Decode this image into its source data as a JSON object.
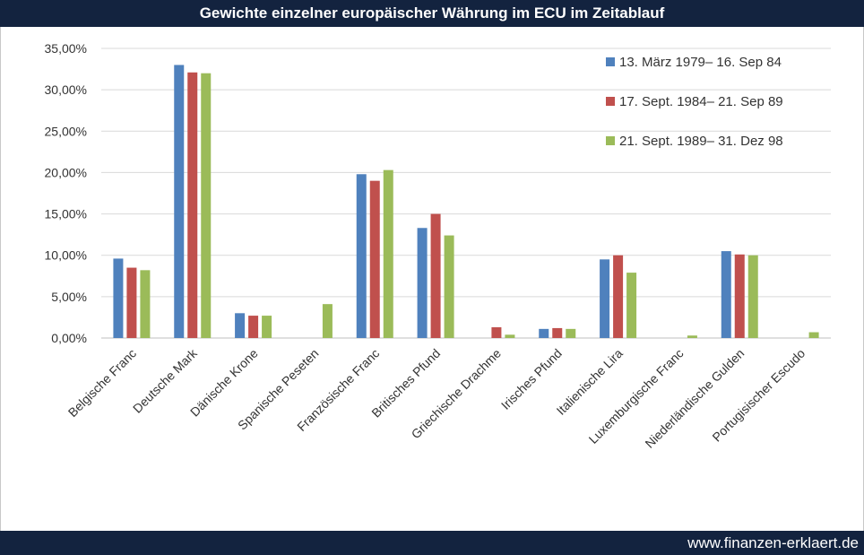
{
  "title": "Gewichte einzelner europäischer Währung im ECU im Zeitablauf",
  "footer": "www.finanzen-erklaert.de",
  "chart_data": {
    "type": "bar",
    "title": "Gewichte einzelner europäischer Währung im ECU im Zeitablauf",
    "xlabel": "",
    "ylabel": "",
    "ylim": [
      0,
      35
    ],
    "yticks": [
      "0,00%",
      "5,00%",
      "10,00%",
      "15,00%",
      "20,00%",
      "25,00%",
      "30,00%",
      "35,00%"
    ],
    "grid": true,
    "legend_position": "top-right",
    "categories": [
      "Belgische Franc",
      "Deutsche Mark",
      "Dänische Krone",
      "Spanische Peseten",
      "Französische Franc",
      "Britisches Pfund",
      "Griechische Drachme",
      "Irisches Pfund",
      "Italienische Lira",
      "Luxemburgische Franc",
      "Niederländische Gulden",
      "Portugisischer Escudo"
    ],
    "series": [
      {
        "name": "13. März 1979– 16. Sep 84",
        "color": "#4f81bd",
        "values": [
          9.6,
          33.0,
          3.0,
          0,
          19.8,
          13.3,
          0,
          1.1,
          9.5,
          0,
          10.5,
          0
        ]
      },
      {
        "name": "17. Sept. 1984– 21. Sep 89",
        "color": "#c0504d",
        "values": [
          8.5,
          32.1,
          2.7,
          0,
          19.0,
          15.0,
          1.3,
          1.2,
          10.0,
          0,
          10.1,
          0
        ]
      },
      {
        "name": "21. Sept. 1989– 31. Dez 98",
        "color": "#9bbb59",
        "values": [
          8.2,
          32.0,
          2.7,
          4.1,
          20.3,
          12.4,
          0.4,
          1.1,
          7.9,
          0.3,
          10.0,
          0.7
        ]
      }
    ]
  }
}
